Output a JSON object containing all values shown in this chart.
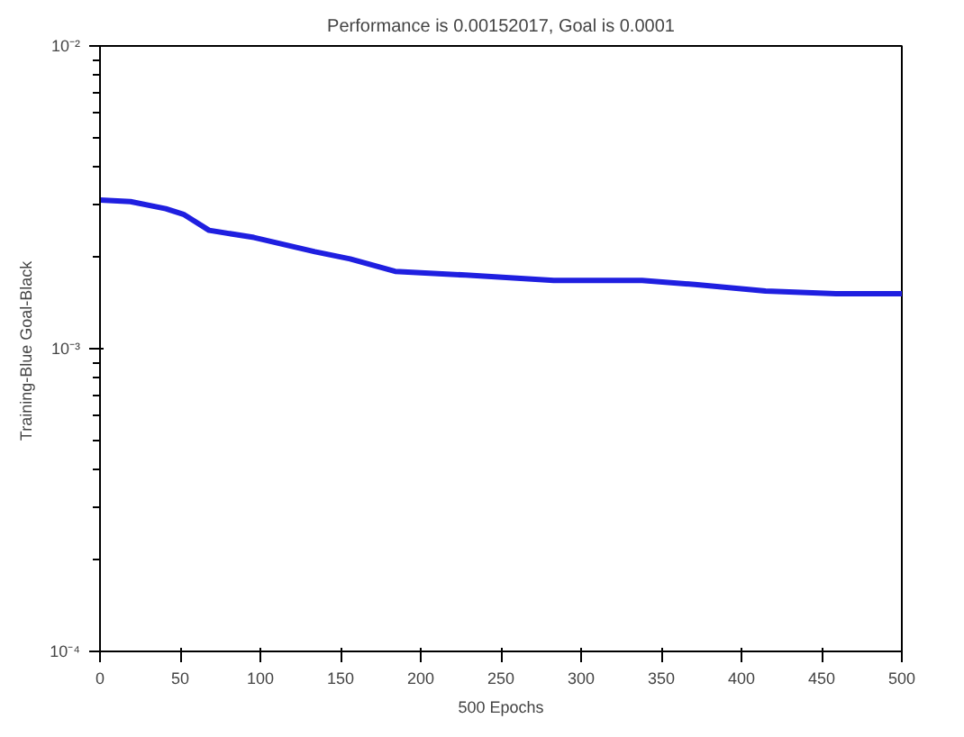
{
  "chart_data": {
    "type": "line",
    "title": "Performance is 0.00152017, Goal is 0.0001",
    "xlabel": "500 Epochs",
    "ylabel": "Training-Blue  Goal-Black",
    "x": [
      0,
      19,
      41,
      52,
      68,
      96,
      134,
      156,
      184,
      228,
      283,
      338,
      371,
      415,
      459,
      500
    ],
    "series": [
      {
        "color": "#1f1fe0",
        "values": [
          0.0031,
          0.00306,
          0.0029,
          0.00278,
          0.00246,
          0.00233,
          0.00209,
          0.00198,
          0.0018,
          0.00175,
          0.00168,
          0.00168,
          0.00163,
          0.00155,
          0.00152,
          0.00152
        ]
      }
    ],
    "log": "y",
    "grid": false,
    "xlim": [
      0,
      500
    ],
    "ylim": [
      0.0001,
      0.01
    ],
    "xticks": [
      0,
      50,
      100,
      150,
      200,
      250,
      300,
      350,
      400,
      450,
      500
    ],
    "yticks": [
      {
        "value": 0.0001,
        "label": "10⁻⁴"
      },
      {
        "value": 0.001,
        "label": "10⁻³"
      },
      {
        "value": 0.01,
        "label": "10⁻²"
      }
    ]
  }
}
